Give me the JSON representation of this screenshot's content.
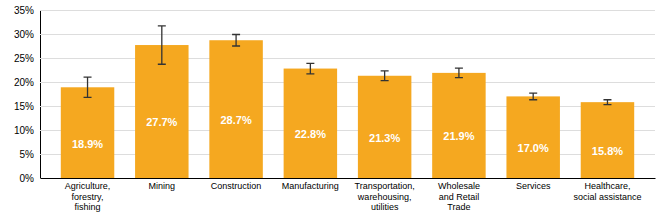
{
  "chart_data": {
    "type": "bar",
    "categories": [
      "Agriculture,\nforestry,\nfishing",
      "Mining",
      "Construction",
      "Manufacturing",
      "Transportation,\nwarehousing,\nutilities",
      "Wholesale\nand Retail\nTrade",
      "Services",
      "Healthcare,\nsocial assistance"
    ],
    "values": [
      18.9,
      27.7,
      28.7,
      22.8,
      21.3,
      21.9,
      17.0,
      15.8
    ],
    "value_labels": [
      "18.9%",
      "27.7%",
      "28.7%",
      "22.8%",
      "21.3%",
      "21.9%",
      "17.0%",
      "15.8%"
    ],
    "errors": [
      2.1,
      4.0,
      1.2,
      1.1,
      1.0,
      1.0,
      0.7,
      0.5
    ],
    "color": "#F5A820",
    "ylim": [
      0,
      35
    ],
    "yticks": [
      {
        "value": 0,
        "label": "0%"
      },
      {
        "value": 5,
        "label": "5%"
      },
      {
        "value": 10,
        "label": "10%"
      },
      {
        "value": 15,
        "label": "15%"
      },
      {
        "value": 20,
        "label": "20%"
      },
      {
        "value": 25,
        "label": "25%"
      },
      {
        "value": 30,
        "label": "30%"
      },
      {
        "value": 35,
        "label": "35%"
      }
    ],
    "grid": true,
    "data_labels": true
  }
}
